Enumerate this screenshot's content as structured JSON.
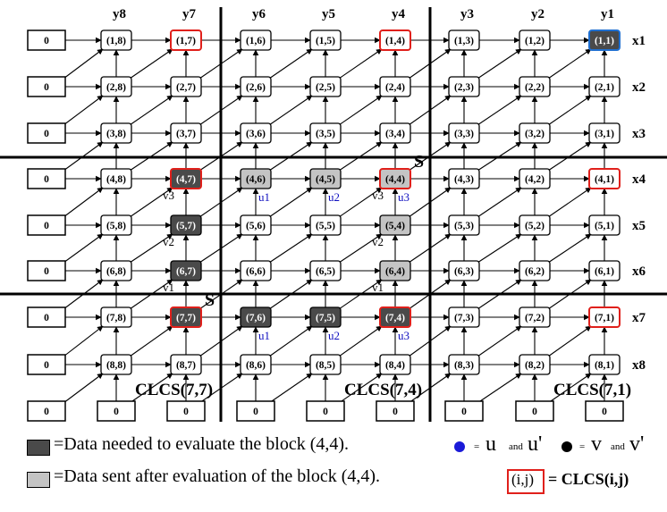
{
  "cols": [
    8,
    7,
    6,
    5,
    4,
    3,
    2,
    1
  ],
  "col_labels": [
    "y8",
    "y7",
    "y6",
    "y5",
    "y4",
    "y3",
    "y2",
    "y1"
  ],
  "rows": [
    1,
    2,
    3,
    4,
    5,
    6,
    7,
    8
  ],
  "row_labels": [
    "x1",
    "x2",
    "x3",
    "x4",
    "x5",
    "x6",
    "x7",
    "x8"
  ],
  "zero_label": "0",
  "node_styles": {
    "1,7": "red",
    "1,4": "red",
    "1,1": "blue",
    "4,7": "dark-red",
    "4,6": "light",
    "4,5": "light",
    "4,4": "light-red",
    "4,1": "red",
    "5,7": "dark",
    "5,4": "light",
    "6,7": "dark",
    "6,4": "light",
    "7,7": "dark-red",
    "7,6": "dark",
    "7,5": "dark",
    "7,4": "dark-red",
    "7,1": "red"
  },
  "colors": {
    "dark": "#4a4a4a",
    "light": "#c4c4c4",
    "red": "#e0201b",
    "blue": "#1f6fd0",
    "node_fill": "#ffffff",
    "label_blue": "#1010c0"
  },
  "annotations": [
    {
      "id": "v3a",
      "text": "v3",
      "color": "black",
      "node": "4,7",
      "pos": "below-left"
    },
    {
      "id": "v2a",
      "text": "v2",
      "color": "black",
      "node": "5,7",
      "pos": "below-left"
    },
    {
      "id": "v1a",
      "text": "v1",
      "color": "black",
      "node": "6,7",
      "pos": "below-left"
    },
    {
      "id": "u1a",
      "text": "u1",
      "color": "blue",
      "node": "4,6",
      "pos": "below-right"
    },
    {
      "id": "u2a",
      "text": "u2",
      "color": "blue",
      "node": "4,5",
      "pos": "below-right"
    },
    {
      "id": "u3a",
      "text": "u3",
      "color": "blue",
      "node": "4,4",
      "pos": "below-right"
    },
    {
      "id": "v3b",
      "text": "v3",
      "color": "black",
      "node": "4,4",
      "pos": "below-left"
    },
    {
      "id": "v2b",
      "text": "v2",
      "color": "black",
      "node": "5,4",
      "pos": "below-left"
    },
    {
      "id": "v1b",
      "text": "v1",
      "color": "black",
      "node": "6,4",
      "pos": "below-left"
    },
    {
      "id": "u1b",
      "text": "u1",
      "color": "blue",
      "node": "7,6",
      "pos": "below-right"
    },
    {
      "id": "u2b",
      "text": "u2",
      "color": "blue",
      "node": "7,5",
      "pos": "below-right"
    },
    {
      "id": "u3b",
      "text": "u3",
      "color": "blue",
      "node": "7,4",
      "pos": "below-right"
    },
    {
      "id": "s1",
      "text": "S",
      "color": "black",
      "node": "4,4",
      "pos": "top-right-big"
    },
    {
      "id": "s2",
      "text": "S",
      "color": "black",
      "node": "7,7",
      "pos": "top-right-big"
    }
  ],
  "block_labels": [
    {
      "text": "CLCS(7,7)",
      "col": 1
    },
    {
      "text": "CLCS(7,4)",
      "col": 4
    },
    {
      "text": "CLCS(7,1)",
      "col": 7
    }
  ],
  "legend": {
    "dark_text": "=Data needed to evaluate the block (4,4).",
    "light_text": "=Data sent after evaluation of the block (4,4).",
    "u_eq": "=",
    "u_letter": "u",
    "and1": "and",
    "u_prime": "u'",
    "v_eq": "=",
    "v_letter": "v",
    "and2": "and",
    "v_prime": "v'",
    "clcs_box": "(i,j)",
    "clcs_text": "= CLCS(i,j)"
  }
}
